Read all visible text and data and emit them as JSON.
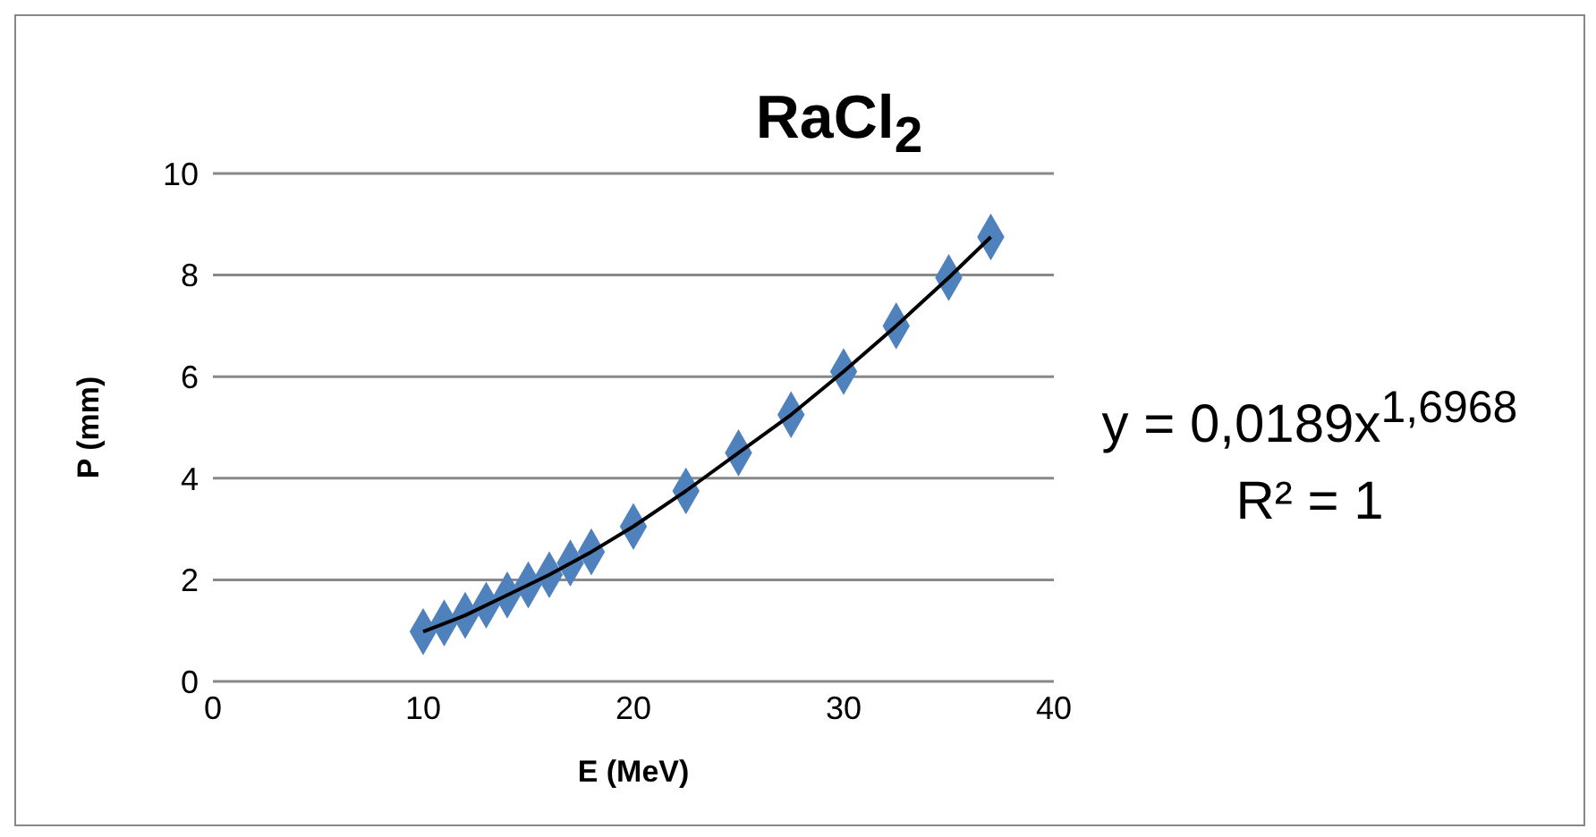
{
  "chart_data": {
    "type": "scatter",
    "title": "RaCl$_{2}$",
    "xlabel": "E (MeV)",
    "ylabel": "P (mm)",
    "xlim": [
      0,
      40
    ],
    "xticks": [
      0,
      10,
      20,
      30,
      40
    ],
    "ylim": [
      0,
      10
    ],
    "yticks": [
      0,
      2,
      4,
      6,
      8,
      10
    ],
    "grid": "y",
    "series": [
      {
        "marker": "diamond",
        "color": "#4f81bd",
        "x": [
          10,
          11,
          12,
          13,
          14,
          15,
          16,
          17,
          18,
          20,
          22.5,
          25,
          27.5,
          30,
          32.5,
          35,
          37
        ],
        "values": [
          0.98,
          1.15,
          1.3,
          1.5,
          1.7,
          1.9,
          2.1,
          2.33,
          2.55,
          3.05,
          3.75,
          4.5,
          5.25,
          6.1,
          7.0,
          7.95,
          8.75
        ]
      },
      {
        "type": "line",
        "color": "#000000",
        "x": [
          10,
          12,
          14,
          16,
          18,
          20,
          22.5,
          25,
          27.5,
          30,
          32.5,
          35,
          37
        ],
        "values": [
          0.98,
          1.3,
          1.7,
          2.1,
          2.55,
          3.05,
          3.75,
          4.5,
          5.25,
          6.1,
          7.0,
          7.95,
          8.75
        ]
      }
    ],
    "annotations": [
      "y = 0,0189x$^{1,6968}$",
      "R² = 1"
    ]
  }
}
